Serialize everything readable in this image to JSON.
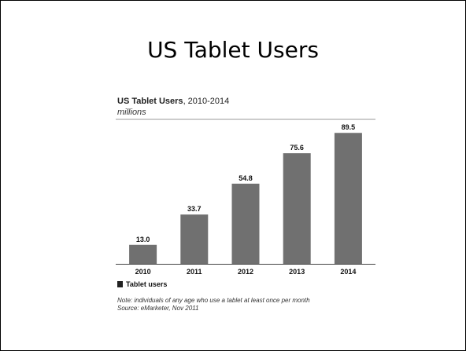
{
  "slide": {
    "title": "US Tablet Users"
  },
  "chart_data": {
    "type": "bar",
    "title": "US Tablet Users",
    "title_years": ", 2010-2014",
    "subtitle": "millions",
    "categories": [
      "2010",
      "2011",
      "2012",
      "2013",
      "2014"
    ],
    "values": [
      13.0,
      33.7,
      54.8,
      75.6,
      89.5
    ],
    "value_labels": [
      "13.0",
      "33.7",
      "54.8",
      "75.6",
      "89.5"
    ],
    "series": [
      {
        "name": "Tablet users",
        "values": [
          13.0,
          33.7,
          54.8,
          75.6,
          89.5
        ]
      }
    ],
    "legend": "bottom-left",
    "grid": false,
    "ylim": [
      0,
      95
    ],
    "bar_color": "#707070",
    "note": "Note: individuals of any age who use a tablet at least once per month",
    "source": "Source: eMarketer, Nov 2011"
  }
}
